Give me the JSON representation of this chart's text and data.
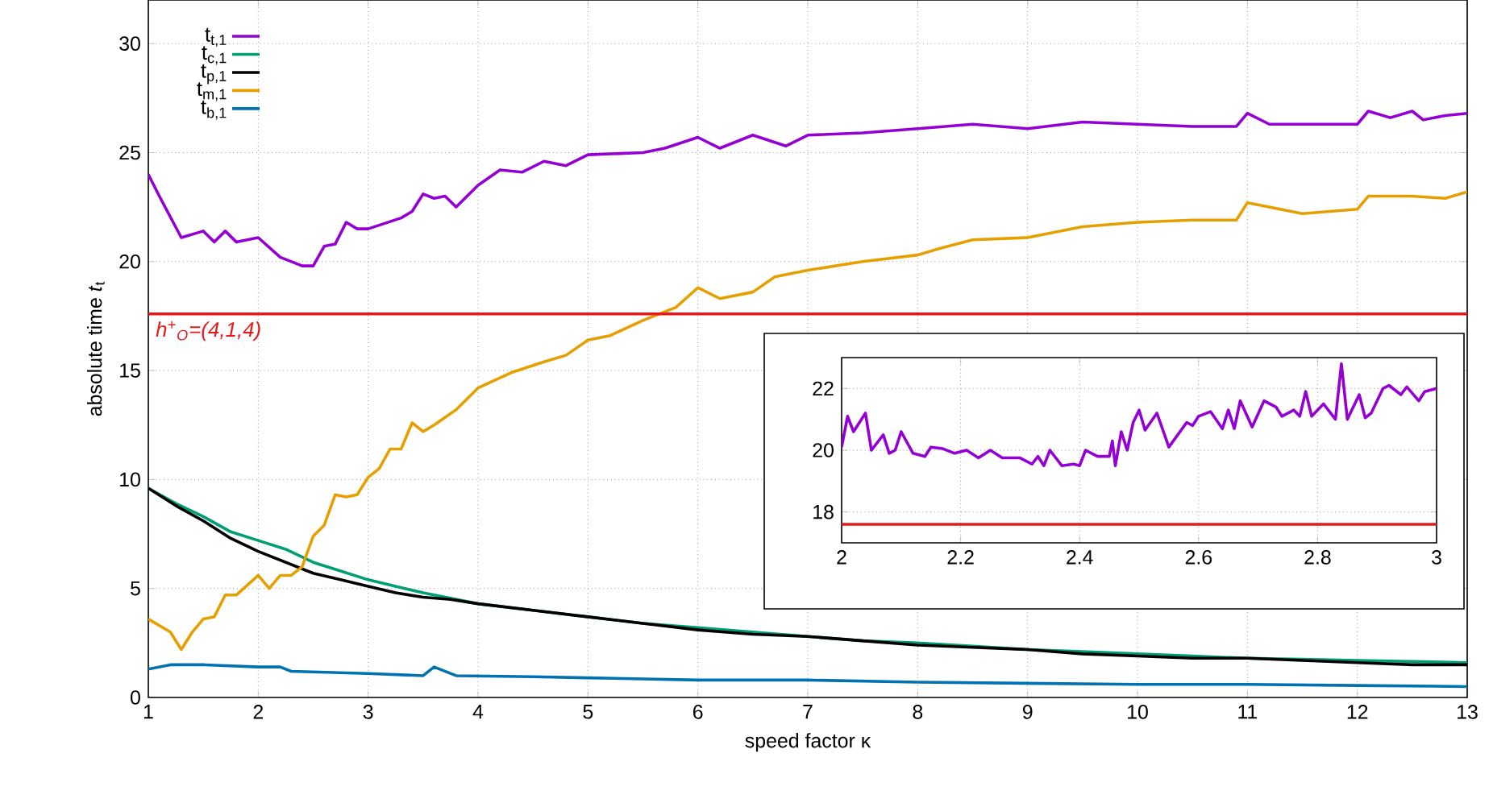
{
  "chart_data": [
    {
      "type": "line",
      "xlabel": "speed factor κ",
      "ylabel": "absolute time *t*$_{t}$",
      "xlim": [
        1,
        13
      ],
      "ylim": [
        0,
        32
      ],
      "xticks": [
        1,
        2,
        3,
        4,
        5,
        6,
        7,
        8,
        9,
        10,
        11,
        12,
        13
      ],
      "yticks": [
        0,
        5,
        10,
        15,
        20,
        25,
        30
      ],
      "grid": true,
      "legend": "top left",
      "series": [
        {
          "name": "t$_{t,1}$",
          "color": "#9400d3",
          "x": [
            1,
            1.1,
            1.3,
            1.5,
            1.6,
            1.7,
            1.8,
            2.0,
            2.2,
            2.4,
            2.5,
            2.6,
            2.7,
            2.8,
            2.9,
            3.0,
            3.3,
            3.4,
            3.5,
            3.6,
            3.7,
            3.8,
            4.0,
            4.2,
            4.4,
            4.6,
            4.8,
            5.0,
            5.5,
            5.7,
            6.0,
            6.2,
            6.5,
            6.8,
            7.0,
            7.5,
            8.0,
            8.5,
            9.0,
            9.5,
            10,
            10.5,
            10.9,
            11,
            11.2,
            11.5,
            12,
            12.1,
            12.3,
            12.5,
            12.6,
            12.8,
            13
          ],
          "values": [
            24.0,
            23.0,
            21.1,
            21.4,
            20.9,
            21.4,
            20.9,
            21.1,
            20.2,
            19.8,
            19.8,
            20.7,
            20.8,
            21.8,
            21.5,
            21.5,
            22.0,
            22.3,
            23.1,
            22.9,
            23.0,
            22.5,
            23.5,
            24.2,
            24.1,
            24.6,
            24.4,
            24.9,
            25.0,
            25.2,
            25.7,
            25.2,
            25.8,
            25.3,
            25.8,
            25.9,
            26.1,
            26.3,
            26.1,
            26.4,
            26.3,
            26.2,
            26.2,
            26.8,
            26.3,
            26.3,
            26.3,
            26.9,
            26.6,
            26.9,
            26.5,
            26.7,
            26.8
          ]
        },
        {
          "name": "t$_{c,1}$",
          "color": "#009e73",
          "x": [
            1,
            1.25,
            1.5,
            1.75,
            2,
            2.25,
            2.5,
            2.75,
            3,
            3.25,
            3.5,
            4,
            4.5,
            5,
            5.5,
            6,
            6.5,
            7,
            7.5,
            8,
            8.5,
            9,
            9.5,
            10,
            10.5,
            11,
            11.5,
            12,
            12.5,
            13
          ],
          "values": [
            9.6,
            8.9,
            8.3,
            7.6,
            7.2,
            6.8,
            6.2,
            5.8,
            5.4,
            5.1,
            4.8,
            4.3,
            4.0,
            3.7,
            3.4,
            3.2,
            3.0,
            2.8,
            2.6,
            2.5,
            2.35,
            2.2,
            2.1,
            2.0,
            1.9,
            1.8,
            1.75,
            1.7,
            1.65,
            1.6
          ]
        },
        {
          "name": "t$_{p,1}$",
          "color": "#000000",
          "x": [
            1,
            1.25,
            1.5,
            1.75,
            2,
            2.25,
            2.5,
            2.75,
            3,
            3.25,
            3.5,
            3.75,
            4,
            4.5,
            5,
            5.5,
            6,
            6.5,
            7,
            7.5,
            8,
            8.5,
            9,
            9.5,
            10,
            10.5,
            11,
            11.5,
            12,
            12.5,
            13
          ],
          "values": [
            9.6,
            8.8,
            8.1,
            7.3,
            6.7,
            6.2,
            5.7,
            5.4,
            5.1,
            4.8,
            4.6,
            4.5,
            4.3,
            4.0,
            3.7,
            3.4,
            3.1,
            2.9,
            2.8,
            2.6,
            2.4,
            2.3,
            2.2,
            2.0,
            1.9,
            1.8,
            1.8,
            1.7,
            1.6,
            1.5,
            1.5
          ]
        },
        {
          "name": "t$_{m,1}$",
          "color": "#e69f00",
          "x": [
            1,
            1.2,
            1.3,
            1.4,
            1.5,
            1.6,
            1.7,
            1.8,
            2.0,
            2.1,
            2.2,
            2.3,
            2.4,
            2.5,
            2.6,
            2.7,
            2.8,
            2.9,
            3.0,
            3.1,
            3.2,
            3.3,
            3.4,
            3.5,
            3.6,
            3.8,
            4.0,
            4.3,
            4.6,
            4.8,
            5.0,
            5.2,
            5.5,
            5.8,
            6.0,
            6.2,
            6.5,
            6.7,
            7.0,
            7.5,
            8.0,
            8.2,
            8.5,
            9,
            9.5,
            10.0,
            10.5,
            10.9,
            11.0,
            11.5,
            12,
            12.1,
            12.5,
            12.8,
            13
          ],
          "values": [
            3.6,
            3.0,
            2.2,
            3.0,
            3.6,
            3.7,
            4.7,
            4.7,
            5.6,
            5.0,
            5.6,
            5.6,
            6.0,
            7.4,
            7.9,
            9.3,
            9.2,
            9.3,
            10.1,
            10.5,
            11.4,
            11.4,
            12.6,
            12.2,
            12.5,
            13.2,
            14.2,
            14.9,
            15.4,
            15.7,
            16.4,
            16.6,
            17.3,
            17.9,
            18.8,
            18.3,
            18.6,
            19.3,
            19.6,
            20.0,
            20.3,
            20.6,
            21.0,
            21.1,
            21.6,
            21.8,
            21.9,
            21.9,
            22.7,
            22.2,
            22.4,
            23.0,
            23.0,
            22.9,
            23.2
          ]
        },
        {
          "name": "t$_{b,1}$",
          "color": "#0072b2",
          "x": [
            1,
            1.2,
            1.5,
            2,
            2.2,
            2.3,
            3,
            3.5,
            3.6,
            3.8,
            4.5,
            5,
            6,
            7,
            8,
            9,
            10,
            11,
            12,
            13
          ],
          "values": [
            1.3,
            1.5,
            1.5,
            1.4,
            1.4,
            1.2,
            1.1,
            1.0,
            1.4,
            1.0,
            0.95,
            0.9,
            0.8,
            0.8,
            0.7,
            0.65,
            0.6,
            0.6,
            0.55,
            0.5
          ]
        }
      ],
      "ref_lines": [
        {
          "axis": "y",
          "value": 17.6,
          "label": "h$^{+}$$_{O}$=(4,1,4)",
          "color": "#e41a1c"
        }
      ]
    },
    {
      "type": "line",
      "xlim": [
        2,
        3
      ],
      "ylim": [
        17,
        23
      ],
      "xticks": [
        2,
        2.2,
        2.4,
        2.6,
        2.8,
        3
      ],
      "yticks": [
        18,
        20,
        22
      ],
      "grid": true,
      "series": [
        {
          "color": "#9400d3",
          "x": [
            2.0,
            2.01,
            2.02,
            2.04,
            2.05,
            2.07,
            2.08,
            2.09,
            2.1,
            2.12,
            2.14,
            2.15,
            2.17,
            2.19,
            2.21,
            2.23,
            2.25,
            2.27,
            2.3,
            2.32,
            2.33,
            2.34,
            2.35,
            2.37,
            2.39,
            2.4,
            2.41,
            2.43,
            2.45,
            2.455,
            2.46,
            2.47,
            2.48,
            2.49,
            2.5,
            2.51,
            2.53,
            2.55,
            2.58,
            2.59,
            2.6,
            2.62,
            2.64,
            2.65,
            2.66,
            2.67,
            2.69,
            2.71,
            2.73,
            2.74,
            2.76,
            2.77,
            2.78,
            2.79,
            2.81,
            2.83,
            2.84,
            2.85,
            2.87,
            2.88,
            2.89,
            2.91,
            2.92,
            2.94,
            2.95,
            2.97,
            2.98,
            3.0
          ],
          "values": [
            20.1,
            21.1,
            20.6,
            21.2,
            20.0,
            20.5,
            19.9,
            20.0,
            20.6,
            19.9,
            19.8,
            20.1,
            20.05,
            19.9,
            20.0,
            19.75,
            20.0,
            19.75,
            19.75,
            19.55,
            19.8,
            19.5,
            20.0,
            19.5,
            19.55,
            19.5,
            20.0,
            19.8,
            19.8,
            20.3,
            19.5,
            20.6,
            20.0,
            20.9,
            21.3,
            20.65,
            21.2,
            20.1,
            20.9,
            20.8,
            21.1,
            21.25,
            20.7,
            21.3,
            20.7,
            21.6,
            20.75,
            21.6,
            21.4,
            21.1,
            21.3,
            21.1,
            21.9,
            21.1,
            21.5,
            21.0,
            22.8,
            21.0,
            21.8,
            21.05,
            21.2,
            22.0,
            22.1,
            21.8,
            22.05,
            21.6,
            21.9,
            22.0
          ]
        }
      ],
      "ref_lines": [
        {
          "axis": "y",
          "value": 17.6,
          "color": "#e41a1c"
        }
      ]
    }
  ]
}
